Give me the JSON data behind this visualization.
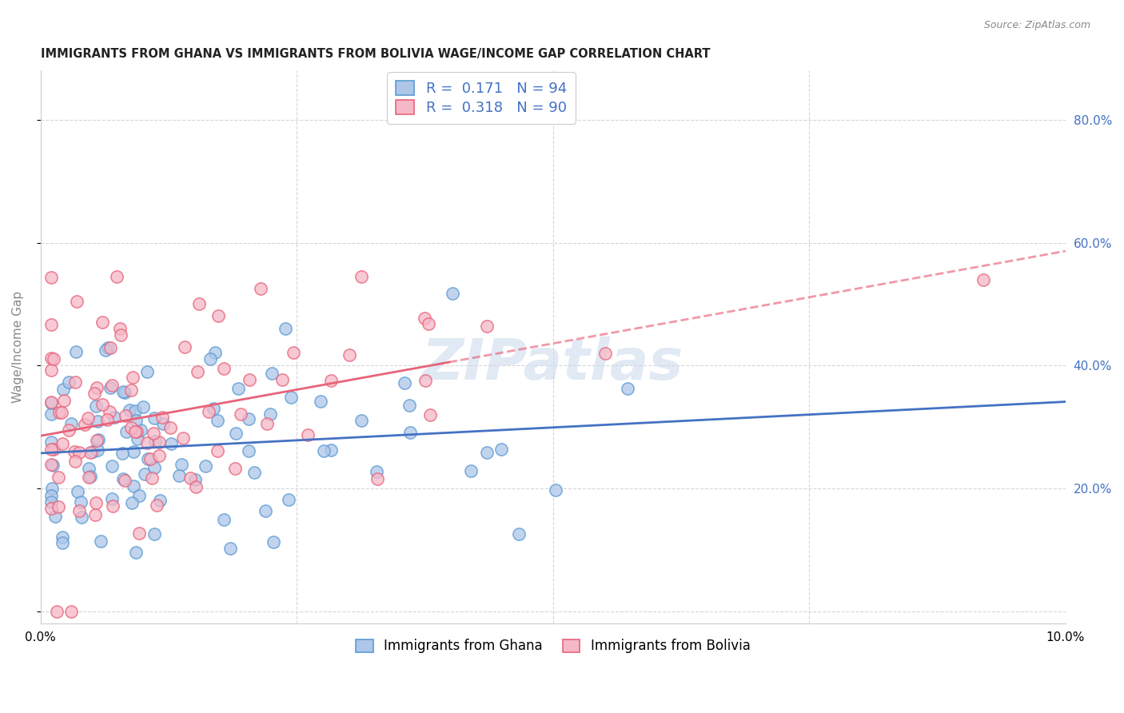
{
  "title": "IMMIGRANTS FROM GHANA VS IMMIGRANTS FROM BOLIVIA WAGE/INCOME GAP CORRELATION CHART",
  "source": "Source: ZipAtlas.com",
  "ylabel": "Wage/Income Gap",
  "xlim": [
    0.0,
    0.1
  ],
  "ylim": [
    -0.02,
    0.88
  ],
  "yticks": [
    0.0,
    0.2,
    0.4,
    0.6,
    0.8
  ],
  "ghana_R": "0.171",
  "ghana_N": "94",
  "bolivia_R": "0.318",
  "bolivia_N": "90",
  "ghana_color": "#aec6e8",
  "bolivia_color": "#f5b8c8",
  "ghana_edge_color": "#5b9bd5",
  "bolivia_edge_color": "#e8637a",
  "ghana_line_color": "#4472c4",
  "bolivia_line_color": "#e8637a",
  "right_tick_color": "#4472c4",
  "watermark": "ZIPatlas",
  "title_fontsize": 10.5,
  "source_fontsize": 9,
  "legend_fontsize": 13
}
